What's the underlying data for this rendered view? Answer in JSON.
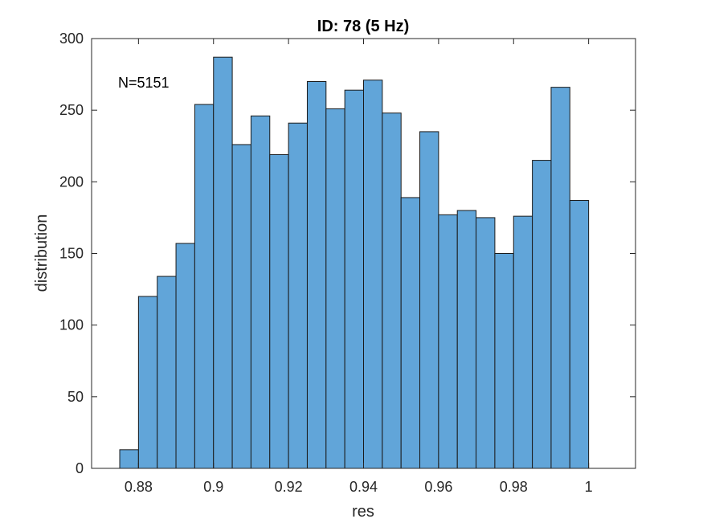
{
  "chart_data": {
    "type": "bar",
    "title": "ID: 78 (5 Hz)",
    "xlabel": "res",
    "ylabel": "distribution",
    "annotation": "N=5151",
    "xlim": [
      0.8675,
      1.0125
    ],
    "ylim": [
      0,
      300
    ],
    "xticks": [
      0.88,
      0.9,
      0.92,
      0.94,
      0.96,
      0.98,
      1
    ],
    "xtick_labels": [
      "0.88",
      "0.9",
      "0.92",
      "0.94",
      "0.96",
      "0.98",
      "1"
    ],
    "yticks": [
      0,
      50,
      100,
      150,
      200,
      250,
      300
    ],
    "ytick_labels": [
      "0",
      "50",
      "100",
      "150",
      "200",
      "250",
      "300"
    ],
    "bin_start": 0.875,
    "bin_width": 0.005,
    "values": [
      13,
      120,
      134,
      157,
      254,
      287,
      226,
      246,
      219,
      241,
      270,
      251,
      264,
      271,
      248,
      189,
      235,
      177,
      180,
      175,
      150,
      176,
      215,
      266,
      187
    ],
    "grid": false,
    "colors": {
      "bar_fill": "#61a5d9",
      "bar_edge": "#1a1a1a",
      "axis": "#262626"
    }
  }
}
